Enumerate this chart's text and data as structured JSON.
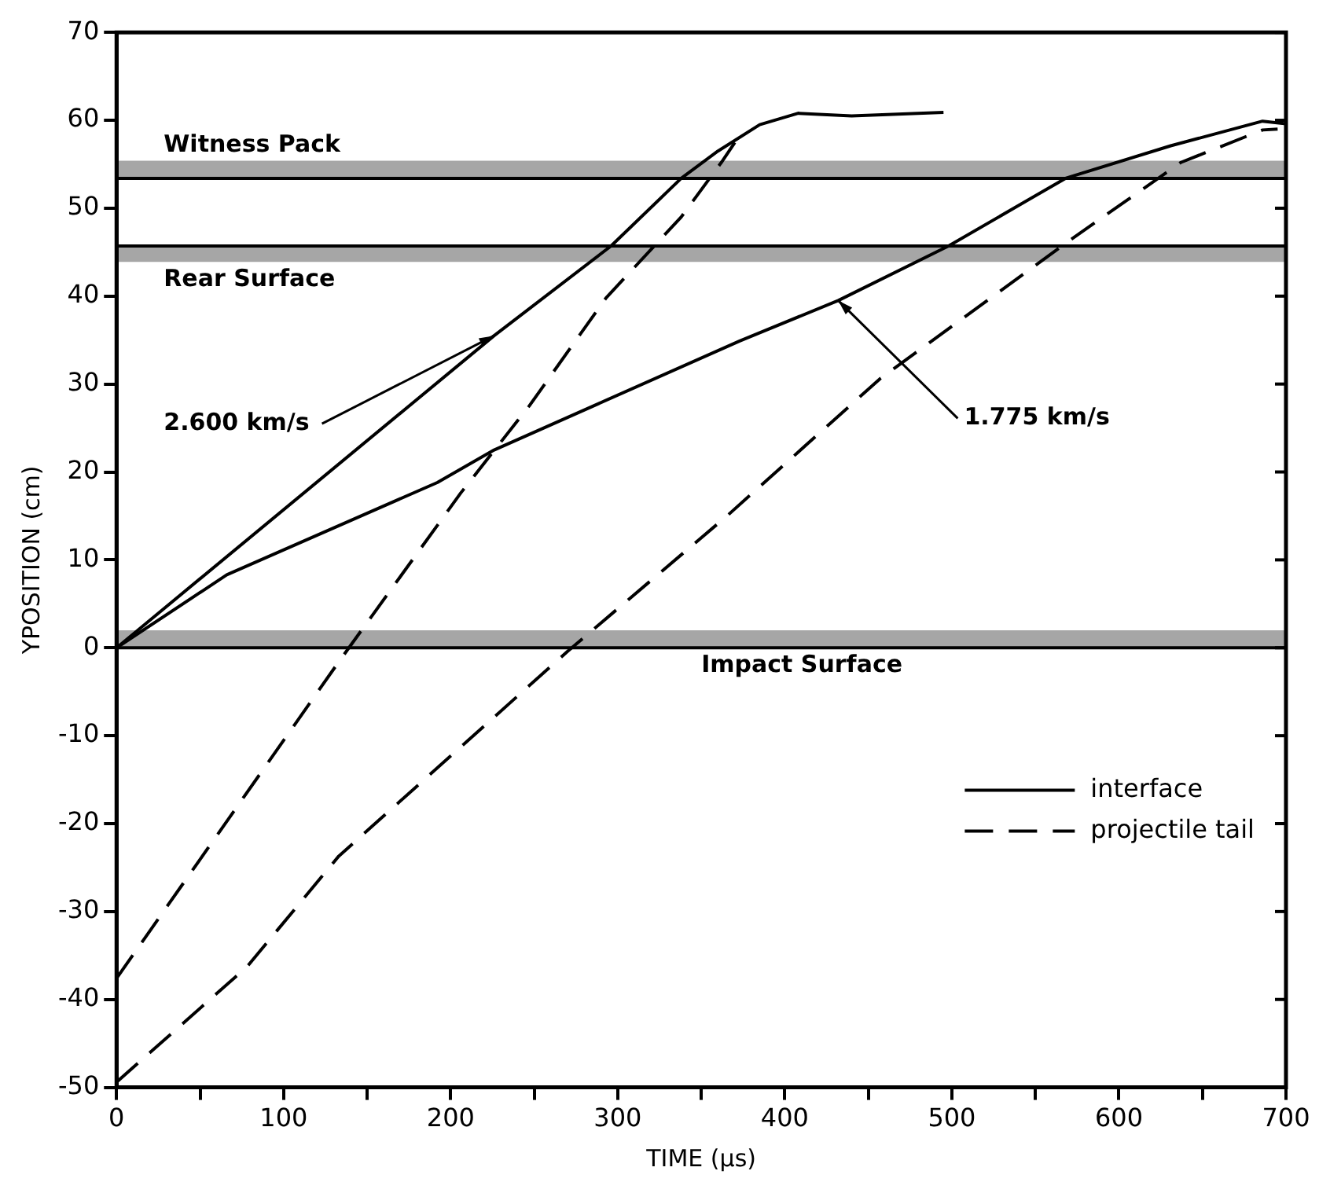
{
  "chart_data": {
    "type": "line",
    "xlabel": "TIME (μs)",
    "ylabel": "YPOSITION (cm)",
    "xlim": [
      0,
      700
    ],
    "ylim": [
      -50,
      70
    ],
    "xticks": [
      0,
      {
        "value": 50,
        "label": null
      },
      100,
      {
        "value": 150,
        "label": null
      },
      200,
      {
        "value": 250,
        "label": null
      },
      300,
      {
        "value": 350,
        "label": null
      },
      400,
      {
        "value": 450,
        "label": null
      },
      500,
      {
        "value": 550,
        "label": null
      },
      600,
      {
        "value": 650,
        "label": null
      },
      700
    ],
    "yticks": [
      -50,
      -40,
      -30,
      -20,
      -10,
      0,
      10,
      20,
      30,
      40,
      50,
      60,
      70
    ],
    "legend": "bottom right",
    "marker": "none",
    "series": [
      {
        "name": "interface",
        "color": "#000000",
        "line_style": "solid",
        "x": [
          0,
          226,
          296,
          338,
          360,
          385,
          408,
          440,
          495
        ],
        "values": [
          0,
          35.5,
          45.7,
          53.4,
          56.5,
          59.5,
          60.8,
          60.5,
          60.9
        ]
      },
      {
        "color": "#000000",
        "line_style": "solid",
        "x": [
          0,
          66,
          192,
          226,
          373,
          432,
          498,
          568,
          631,
          686,
          700
        ],
        "values": [
          0,
          8.3,
          18.8,
          22.5,
          34.9,
          39.5,
          45.7,
          53.4,
          57.1,
          59.9,
          59.6
        ]
      },
      {
        "name": "projectile tail",
        "color": "#000000",
        "line_style": "dashed",
        "x": [
          0,
          133,
          206,
          247,
          293,
          338,
          362,
          373
        ],
        "values": [
          -37.6,
          -1.6,
          17.6,
          27.5,
          39.8,
          49,
          55.2,
          58.3
        ]
      },
      {
        "color": "#000000",
        "line_style": "dashed",
        "x": [
          0,
          78,
          133,
          270,
          366,
          457,
          568,
          637,
          686,
          695
        ],
        "values": [
          -49.4,
          -36.3,
          -23.7,
          -0.4,
          15.1,
          30.6,
          46,
          55.2,
          58.9,
          59
        ]
      }
    ],
    "bands": [
      {
        "axis": "y",
        "from": 53.4,
        "to": 55.4,
        "label": "Witness Pack",
        "color": "#000000"
      },
      {
        "axis": "y",
        "from": 45.7,
        "to": 43.9,
        "label": "Rear Surface",
        "color": "#000000"
      },
      {
        "axis": "y",
        "from": 0,
        "to": 2,
        "label": "Impact Surface",
        "color": "#000000"
      }
    ],
    "annotations": [
      {
        "text": "2.600 km/s",
        "x": 226,
        "y": 35.5
      },
      {
        "text": "1.775 km/s",
        "x": 432,
        "y": 39.5
      }
    ]
  }
}
